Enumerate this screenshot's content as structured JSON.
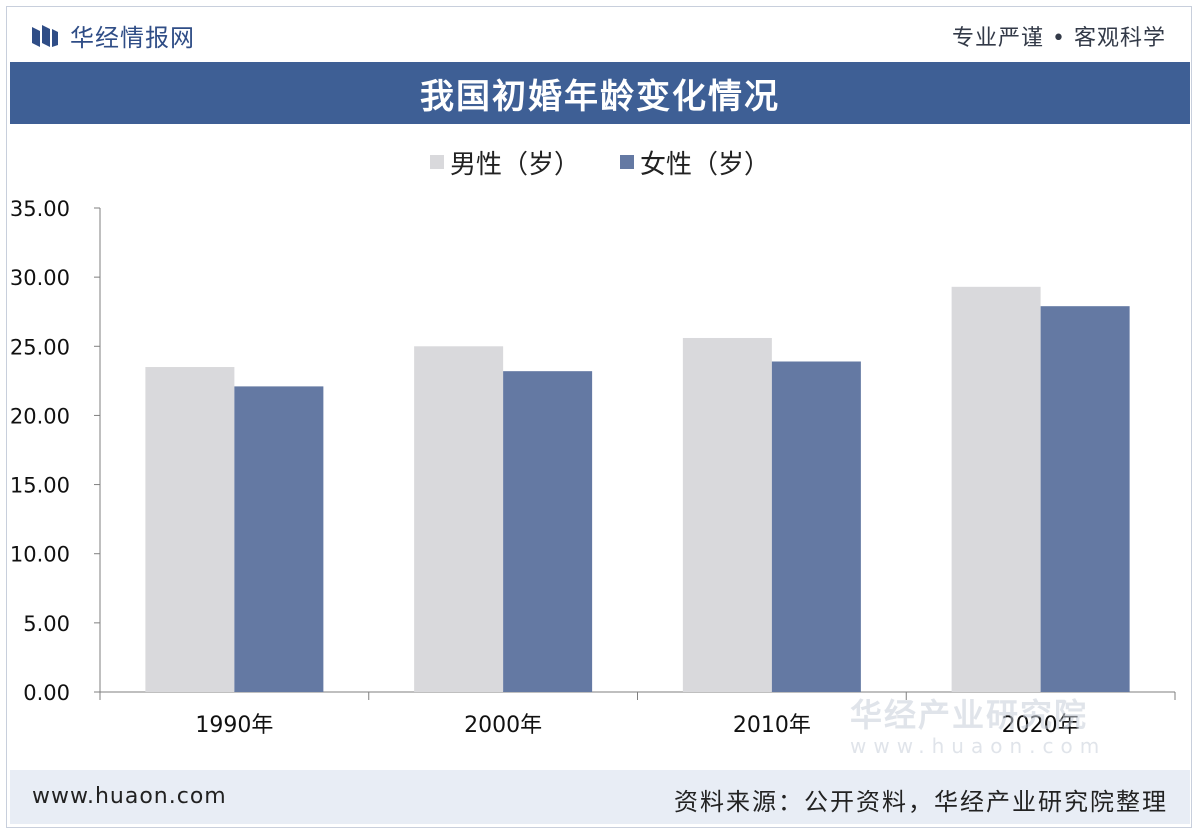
{
  "header": {
    "brand": "华经情报网",
    "slogan": "专业严谨 • 客观科学"
  },
  "title": "我国初婚年龄变化情况",
  "legend": [
    {
      "label": "男性（岁）",
      "color": "#d9d9dc"
    },
    {
      "label": "女性（岁）",
      "color": "#6479a3"
    }
  ],
  "chart_data": {
    "type": "bar",
    "title": "我国初婚年龄变化情况",
    "categories": [
      "1990年",
      "2000年",
      "2010年",
      "2020年"
    ],
    "series": [
      {
        "name": "男性（岁）",
        "values": [
          23.5,
          25.0,
          25.6,
          29.3
        ],
        "color": "#d9d9dc"
      },
      {
        "name": "女性（岁）",
        "values": [
          22.1,
          23.2,
          23.9,
          27.9
        ],
        "color": "#6479a3"
      }
    ],
    "yticks": [
      "0.00",
      "5.00",
      "10.00",
      "15.00",
      "20.00",
      "25.00",
      "30.00",
      "35.00"
    ],
    "ylim": [
      0,
      35
    ],
    "grid": false,
    "legend_position": "top"
  },
  "watermark": {
    "text": "华经产业研究院",
    "url": "www.huaon.com"
  },
  "footer": {
    "url": "www.huaon.com",
    "source": "资料来源：公开资料，华经产业研究院整理"
  }
}
